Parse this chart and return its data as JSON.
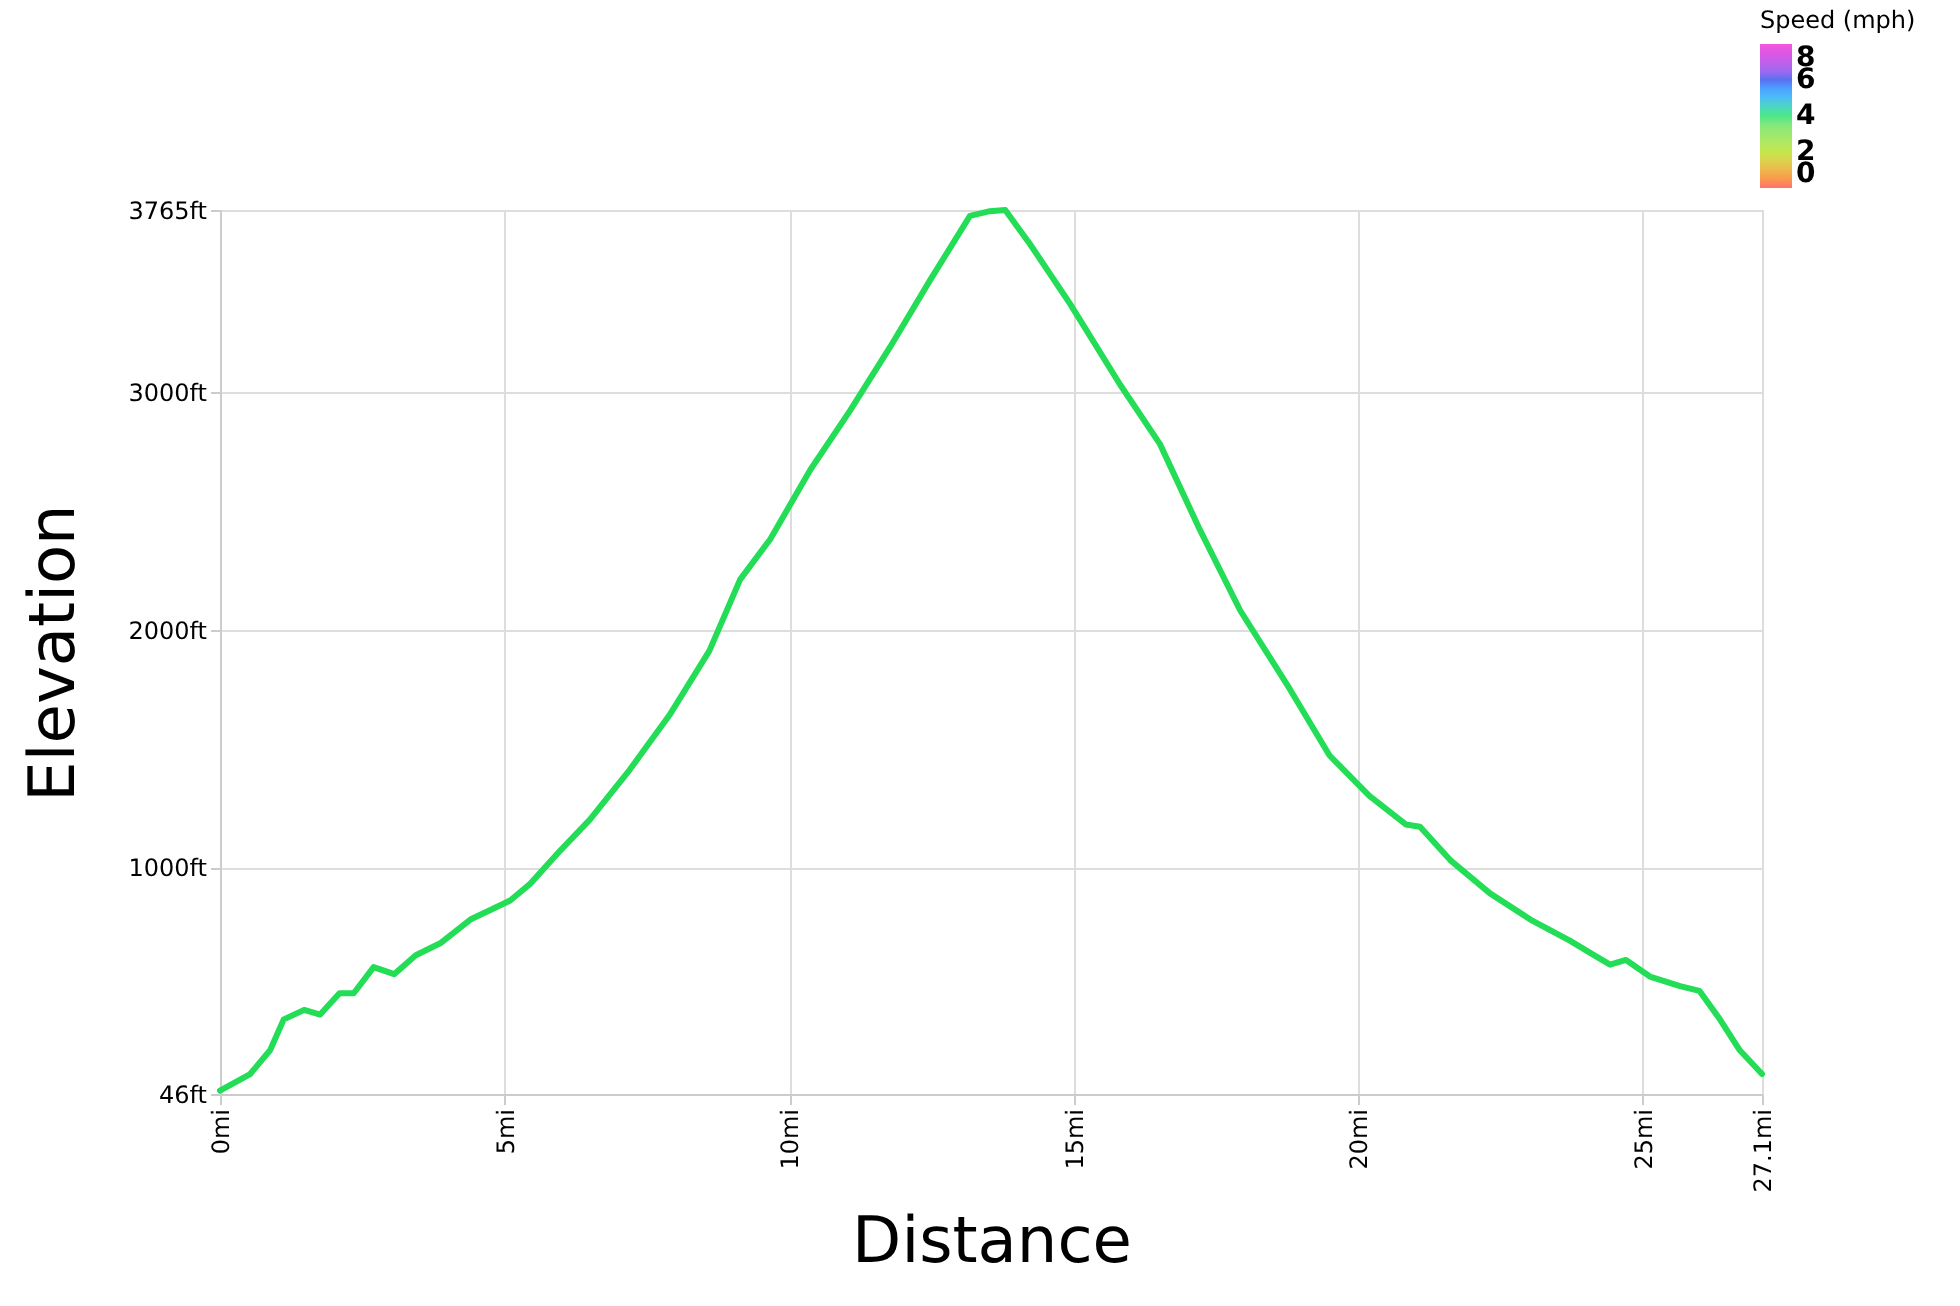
{
  "chart_data": {
    "type": "line",
    "xlabel": "Distance",
    "ylabel": "Elevation",
    "clabel": "Speed (mph)",
    "clim": [
      0,
      8
    ],
    "cticks": [
      0,
      2,
      4,
      6,
      8
    ],
    "xlim": [
      0,
      27.1
    ],
    "xticks": [
      {
        "value": 0,
        "label": "0mi"
      },
      {
        "value": 5,
        "label": "5mi"
      },
      {
        "value": 10,
        "label": "10mi"
      },
      {
        "value": 15,
        "label": "15mi"
      },
      {
        "value": 20,
        "label": "20mi"
      },
      {
        "value": 25,
        "label": "25mi"
      },
      {
        "value": 27.1,
        "label": "27.1mi"
      }
    ],
    "ylim": [
      46,
      3765
    ],
    "yticks": [
      {
        "value": 46,
        "label": "46ft"
      },
      {
        "value": 1000,
        "label": "1000ft"
      },
      {
        "value": 2000,
        "label": "2000ft"
      },
      {
        "value": 3000,
        "label": "3000ft"
      },
      {
        "value": 3765,
        "label": "3765ft"
      }
    ],
    "grid": true,
    "series": [
      {
        "color": "#22dd55",
        "x": [
          0,
          0.53,
          0.88,
          1.12,
          1.48,
          1.76,
          2.1,
          2.35,
          2.7,
          3.06,
          3.44,
          3.87,
          4.4,
          5.1,
          5.45,
          5.98,
          6.5,
          7.2,
          7.9,
          8.6,
          9.14,
          9.67,
          10.37,
          11.07,
          11.78,
          12.48,
          13.18,
          13.53,
          13.8,
          14.24,
          14.94,
          15.82,
          16.52,
          17.22,
          17.93,
          18.8,
          19.5,
          20.2,
          20.84,
          21.09,
          21.62,
          22.32,
          23.03,
          23.73,
          24.08,
          24.43,
          24.71,
          25.13,
          25.66,
          26.0,
          26.36,
          26.71,
          27.1
        ],
        "values": [
          60,
          130,
          230,
          360,
          400,
          380,
          470,
          470,
          580,
          550,
          630,
          680,
          780,
          860,
          930,
          1070,
          1200,
          1410,
          1640,
          1910,
          2210,
          2380,
          2670,
          2920,
          3190,
          3470,
          3740,
          3760,
          3765,
          3620,
          3370,
          3030,
          2780,
          2420,
          2080,
          1750,
          1470,
          1300,
          1180,
          1170,
          1030,
          890,
          780,
          690,
          640,
          590,
          610,
          540,
          500,
          480,
          360,
          230,
          130
        ]
      }
    ]
  }
}
